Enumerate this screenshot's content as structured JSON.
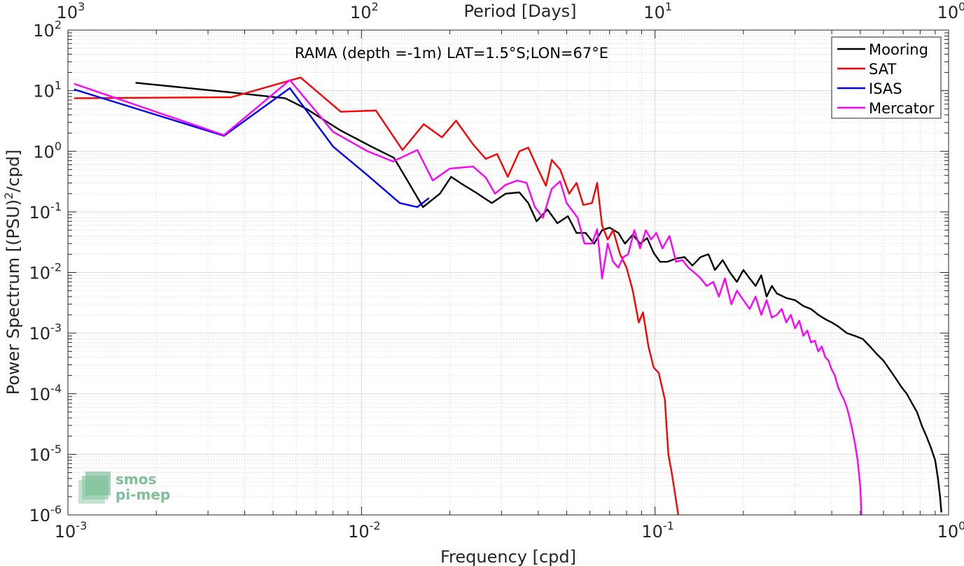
{
  "chart_data": {
    "type": "line",
    "xlabel": "Frequency [cpd]",
    "ylabel": "Power Spectrum [(PSU)",
    "ylabel_sup": "2",
    "ylabel_suffix": "/cpd]",
    "top_axis_label": "Period [Days]",
    "annotation": "RAMA (depth =-1m) LAT=1.5°S;LON=67°E",
    "x_scale": "log",
    "y_scale": "log",
    "xlim": [
      0.001,
      1
    ],
    "ylim": [
      1e-06,
      100
    ],
    "grid": true,
    "legend_position": "top-right",
    "x_ticks": [
      {
        "value": 0.001,
        "base": "10",
        "exp": "-3"
      },
      {
        "value": 0.01,
        "base": "10",
        "exp": "-2"
      },
      {
        "value": 0.1,
        "base": "10",
        "exp": "-1"
      },
      {
        "value": 1,
        "base": "10",
        "exp": "0"
      }
    ],
    "y_ticks": [
      {
        "value": 1e-06,
        "base": "10",
        "exp": "-6"
      },
      {
        "value": 1e-05,
        "base": "10",
        "exp": "-5"
      },
      {
        "value": 0.0001,
        "base": "10",
        "exp": "-4"
      },
      {
        "value": 0.001,
        "base": "10",
        "exp": "-3"
      },
      {
        "value": 0.01,
        "base": "10",
        "exp": "-2"
      },
      {
        "value": 0.1,
        "base": "10",
        "exp": "-1"
      },
      {
        "value": 1,
        "base": "10",
        "exp": "0"
      },
      {
        "value": 10,
        "base": "10",
        "exp": "1"
      },
      {
        "value": 100,
        "base": "10",
        "exp": "2"
      }
    ],
    "top_ticks": [
      {
        "period": 1000,
        "base": "10",
        "exp": "3"
      },
      {
        "period": 100,
        "base": "10",
        "exp": "2"
      },
      {
        "period": 10,
        "base": "10",
        "exp": "1"
      },
      {
        "period": 1,
        "base": "10",
        "exp": "0"
      }
    ],
    "series": [
      {
        "name": "Mooring",
        "color": "#000000",
        "points": [
          [
            0.0017,
            13.5
          ],
          [
            0.0035,
            9.5
          ],
          [
            0.0055,
            7.5
          ],
          [
            0.0065,
            5.0
          ],
          [
            0.0085,
            2.2
          ],
          [
            0.0108,
            1.2
          ],
          [
            0.0129,
            0.78
          ],
          [
            0.0145,
            0.3
          ],
          [
            0.0162,
            0.12
          ],
          [
            0.0185,
            0.2
          ],
          [
            0.0202,
            0.38
          ],
          [
            0.0222,
            0.28
          ],
          [
            0.0245,
            0.21
          ],
          [
            0.0278,
            0.14
          ],
          [
            0.031,
            0.2
          ],
          [
            0.0345,
            0.21
          ],
          [
            0.037,
            0.14
          ],
          [
            0.0395,
            0.07
          ],
          [
            0.043,
            0.11
          ],
          [
            0.0465,
            0.065
          ],
          [
            0.0505,
            0.085
          ],
          [
            0.054,
            0.045
          ],
          [
            0.058,
            0.045
          ],
          [
            0.062,
            0.03
          ],
          [
            0.066,
            0.05
          ],
          [
            0.07,
            0.055
          ],
          [
            0.075,
            0.045
          ],
          [
            0.079,
            0.03
          ],
          [
            0.084,
            0.042
          ],
          [
            0.089,
            0.03
          ],
          [
            0.094,
            0.037
          ],
          [
            0.099,
            0.021
          ],
          [
            0.104,
            0.015
          ],
          [
            0.11,
            0.015
          ],
          [
            0.118,
            0.017
          ],
          [
            0.126,
            0.018
          ],
          [
            0.134,
            0.013
          ],
          [
            0.143,
            0.018
          ],
          [
            0.152,
            0.02
          ],
          [
            0.16,
            0.011
          ],
          [
            0.17,
            0.016
          ],
          [
            0.18,
            0.01
          ],
          [
            0.19,
            0.007
          ],
          [
            0.2,
            0.011
          ],
          [
            0.21,
            0.008
          ],
          [
            0.22,
            0.006
          ],
          [
            0.23,
            0.009
          ],
          [
            0.24,
            0.004
          ],
          [
            0.25,
            0.006
          ],
          [
            0.26,
            0.0045
          ],
          [
            0.28,
            0.0038
          ],
          [
            0.3,
            0.0035
          ],
          [
            0.32,
            0.0028
          ],
          [
            0.34,
            0.0025
          ],
          [
            0.36,
            0.002
          ],
          [
            0.38,
            0.0017
          ],
          [
            0.4,
            0.0015
          ],
          [
            0.42,
            0.0013
          ],
          [
            0.45,
            0.001
          ],
          [
            0.48,
            0.0009
          ],
          [
            0.51,
            0.0008
          ],
          [
            0.54,
            0.0006
          ],
          [
            0.57,
            0.00045
          ],
          [
            0.6,
            0.00035
          ],
          [
            0.63,
            0.00025
          ],
          [
            0.66,
            0.00018
          ],
          [
            0.69,
            0.00013
          ],
          [
            0.72,
            0.0001
          ],
          [
            0.75,
            7e-05
          ],
          [
            0.78,
            5e-05
          ],
          [
            0.81,
            3e-05
          ],
          [
            0.84,
            2e-05
          ],
          [
            0.87,
            1.3e-05
          ],
          [
            0.9,
            8e-06
          ],
          [
            0.92,
            4e-06
          ],
          [
            0.935,
            2e-06
          ],
          [
            0.945,
            1.1e-06
          ]
        ]
      },
      {
        "name": "SAT",
        "color": "#ff0000",
        "points": [
          [
            0.00105,
            7.5
          ],
          [
            0.0036,
            7.8
          ],
          [
            0.0055,
            14.0
          ],
          [
            0.0062,
            16.5
          ],
          [
            0.0085,
            4.5
          ],
          [
            0.0112,
            4.7
          ],
          [
            0.0138,
            1.05
          ],
          [
            0.0163,
            2.8
          ],
          [
            0.0188,
            1.7
          ],
          [
            0.021,
            3.2
          ],
          [
            0.024,
            1.3
          ],
          [
            0.0265,
            0.75
          ],
          [
            0.029,
            0.9
          ],
          [
            0.0315,
            0.38
          ],
          [
            0.0345,
            1.0
          ],
          [
            0.037,
            1.15
          ],
          [
            0.04,
            0.5
          ],
          [
            0.0425,
            0.27
          ],
          [
            0.0445,
            0.72
          ],
          [
            0.0475,
            0.5
          ],
          [
            0.051,
            0.2
          ],
          [
            0.054,
            0.3
          ],
          [
            0.057,
            0.13
          ],
          [
            0.061,
            0.14
          ],
          [
            0.0635,
            0.3
          ],
          [
            0.066,
            0.06
          ],
          [
            0.069,
            0.035
          ],
          [
            0.072,
            0.05
          ],
          [
            0.076,
            0.02
          ],
          [
            0.08,
            0.012
          ],
          [
            0.084,
            0.005
          ],
          [
            0.088,
            0.0015
          ],
          [
            0.091,
            0.0022
          ],
          [
            0.095,
            0.0006
          ],
          [
            0.099,
            0.00027
          ],
          [
            0.103,
            0.00022
          ],
          [
            0.108,
            8e-05
          ],
          [
            0.111,
            1e-05
          ],
          [
            0.114,
            5e-06
          ],
          [
            0.117,
            2.2e-06
          ],
          [
            0.12,
            1e-06
          ]
        ]
      },
      {
        "name": "ISAS",
        "color": "#0000ff",
        "points": [
          [
            0.00105,
            10.5
          ],
          [
            0.0034,
            1.8
          ],
          [
            0.0057,
            11.0
          ],
          [
            0.008,
            1.2
          ],
          [
            0.0105,
            0.4
          ],
          [
            0.0135,
            0.14
          ],
          [
            0.0155,
            0.12
          ],
          [
            0.017,
            0.17
          ]
        ]
      },
      {
        "name": "Mercator",
        "color": "#ff00ff",
        "points": [
          [
            0.00105,
            13.0
          ],
          [
            0.0034,
            1.85
          ],
          [
            0.0057,
            15.0
          ],
          [
            0.008,
            2.1
          ],
          [
            0.0105,
            1.0
          ],
          [
            0.0128,
            0.68
          ],
          [
            0.0155,
            1.05
          ],
          [
            0.0175,
            0.33
          ],
          [
            0.02,
            0.52
          ],
          [
            0.024,
            0.56
          ],
          [
            0.0265,
            0.37
          ],
          [
            0.0285,
            0.2
          ],
          [
            0.031,
            0.28
          ],
          [
            0.034,
            0.33
          ],
          [
            0.0365,
            0.3
          ],
          [
            0.039,
            0.12
          ],
          [
            0.0415,
            0.08
          ],
          [
            0.0445,
            0.24
          ],
          [
            0.0475,
            0.32
          ],
          [
            0.05,
            0.14
          ],
          [
            0.0545,
            0.08
          ],
          [
            0.0575,
            0.03
          ],
          [
            0.061,
            0.03
          ],
          [
            0.0635,
            0.052
          ],
          [
            0.066,
            0.008
          ],
          [
            0.069,
            0.03
          ],
          [
            0.072,
            0.015
          ],
          [
            0.075,
            0.012
          ],
          [
            0.078,
            0.018
          ],
          [
            0.081,
            0.02
          ],
          [
            0.085,
            0.05
          ],
          [
            0.089,
            0.025
          ],
          [
            0.093,
            0.05
          ],
          [
            0.097,
            0.035
          ],
          [
            0.101,
            0.045
          ],
          [
            0.106,
            0.025
          ],
          [
            0.112,
            0.04
          ],
          [
            0.118,
            0.015
          ],
          [
            0.124,
            0.016
          ],
          [
            0.13,
            0.012
          ],
          [
            0.136,
            0.01
          ],
          [
            0.143,
            0.008
          ],
          [
            0.15,
            0.006
          ],
          [
            0.158,
            0.007
          ],
          [
            0.165,
            0.004
          ],
          [
            0.173,
            0.008
          ],
          [
            0.182,
            0.003
          ],
          [
            0.19,
            0.005
          ],
          [
            0.2,
            0.0035
          ],
          [
            0.21,
            0.0025
          ],
          [
            0.22,
            0.004
          ],
          [
            0.23,
            0.002
          ],
          [
            0.24,
            0.0035
          ],
          [
            0.25,
            0.0018
          ],
          [
            0.26,
            0.002
          ],
          [
            0.27,
            0.0025
          ],
          [
            0.28,
            0.0015
          ],
          [
            0.29,
            0.002
          ],
          [
            0.3,
            0.0012
          ],
          [
            0.31,
            0.0016
          ],
          [
            0.32,
            0.0009
          ],
          [
            0.33,
            0.0011
          ],
          [
            0.34,
            0.0007
          ],
          [
            0.35,
            0.00075
          ],
          [
            0.36,
            0.0005
          ],
          [
            0.37,
            0.0006
          ],
          [
            0.38,
            0.0004
          ],
          [
            0.39,
            0.00035
          ],
          [
            0.4,
            0.00025
          ],
          [
            0.41,
            0.0002
          ],
          [
            0.42,
            0.00013
          ],
          [
            0.43,
            0.0001
          ],
          [
            0.44,
            8e-05
          ],
          [
            0.45,
            6e-05
          ],
          [
            0.46,
            4e-05
          ],
          [
            0.47,
            2.5e-05
          ],
          [
            0.48,
            1.5e-05
          ],
          [
            0.49,
            8e-06
          ],
          [
            0.5,
            3e-06
          ],
          [
            0.505,
            1e-06
          ]
        ]
      }
    ]
  },
  "logo": {
    "line1": "smos",
    "line2": "pi-mep"
  }
}
